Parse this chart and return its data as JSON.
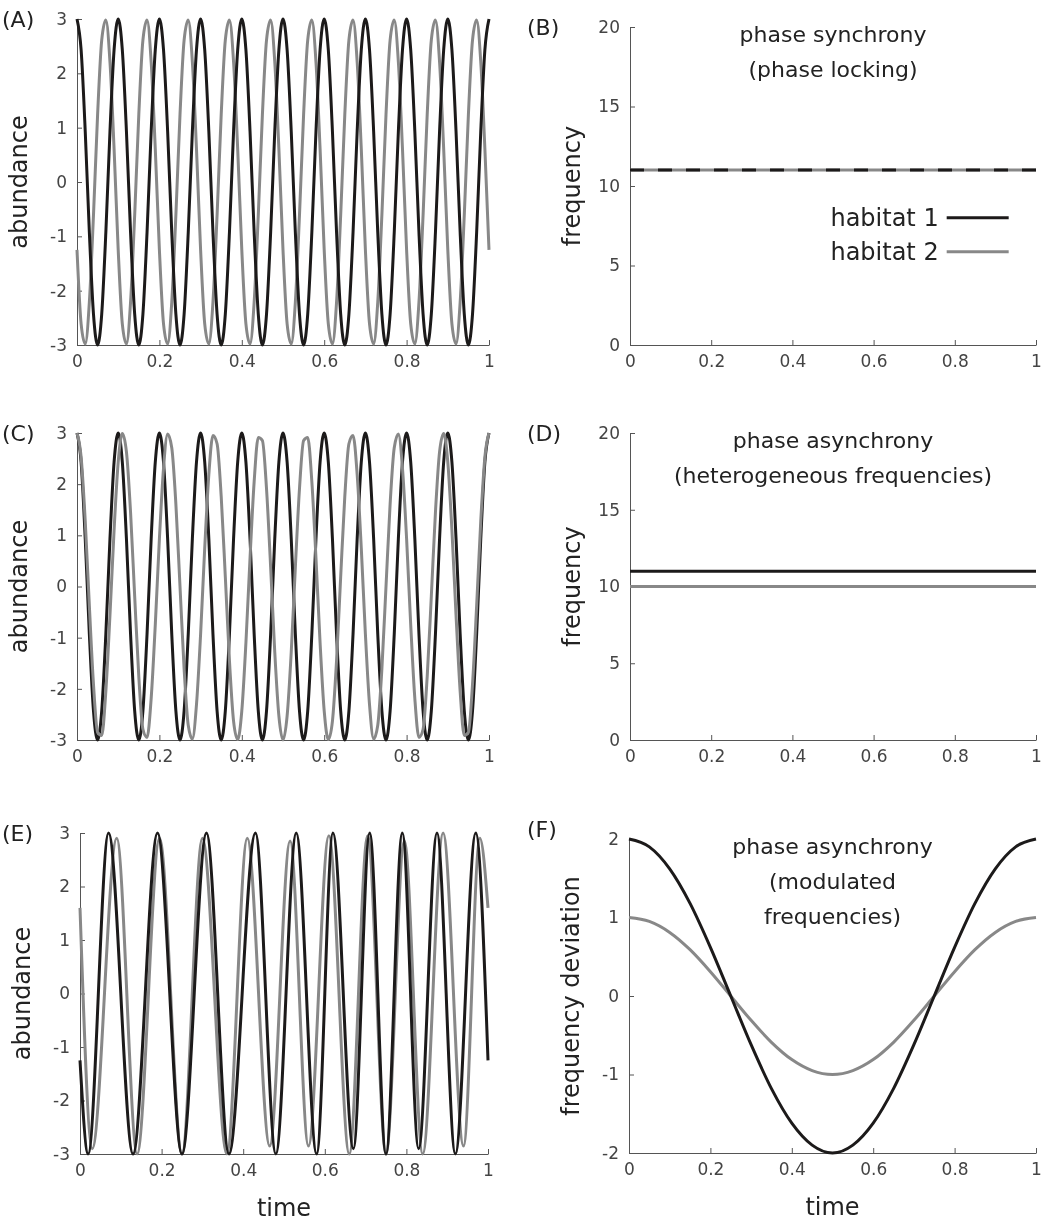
{
  "chart_data": [
    {
      "type": "line",
      "ylabel": "abundance",
      "annotations": [
        "(A)"
      ],
      "xlim": [
        0,
        1
      ],
      "xticks": [
        0,
        0.2,
        0.4,
        0.6,
        0.8,
        1
      ],
      "ylim": [
        -3,
        3
      ],
      "yticks": [
        -3,
        -2,
        -1,
        0,
        1,
        2,
        3
      ],
      "x": [
        0,
        0.01,
        0.02,
        0.03,
        0.04,
        0.05,
        0.06,
        0.07,
        0.08,
        0.09,
        0.1,
        0.11,
        0.12,
        0.13,
        0.14,
        0.15,
        0.16,
        0.17,
        0.18,
        0.19,
        0.2,
        0.21,
        0.22,
        0.23,
        0.24,
        0.25,
        0.26,
        0.27,
        0.28,
        0.29,
        0.3,
        0.31,
        0.32,
        0.33,
        0.34,
        0.35,
        0.36,
        0.37,
        0.38,
        0.39,
        0.4,
        0.41,
        0.42,
        0.43,
        0.44,
        0.45,
        0.46,
        0.47,
        0.48,
        0.49,
        0.5,
        0.51,
        0.52,
        0.53,
        0.54,
        0.55,
        0.56,
        0.57,
        0.58,
        0.59,
        0.6,
        0.61,
        0.62,
        0.63,
        0.64,
        0.65,
        0.66,
        0.67,
        0.68,
        0.69,
        0.7,
        0.71,
        0.72,
        0.73,
        0.74,
        0.75,
        0.76,
        0.77,
        0.78,
        0.79,
        0.8,
        0.81,
        0.82,
        0.83,
        0.84,
        0.85,
        0.86,
        0.87,
        0.88,
        0.89,
        0.9,
        0.91,
        0.92,
        0.93,
        0.94,
        0.95,
        0.96,
        0.97,
        0.98,
        0.99,
        1
      ],
      "series": [
        {
          "color": "#888888",
          "values": [
            -1.25,
            -2.61,
            -2.98,
            -2.21,
            -0.61,
            1.24,
            2.61,
            2.98,
            2.21,
            0.61,
            -1.25,
            -2.61,
            -2.98,
            -2.21,
            -0.61,
            1.24,
            2.61,
            2.98,
            2.21,
            0.61,
            -1.25,
            -2.61,
            -2.98,
            -2.21,
            -0.61,
            1.24,
            2.61,
            2.98,
            2.21,
            0.61,
            -1.25,
            -2.61,
            -2.98,
            -2.21,
            -0.61,
            1.24,
            2.61,
            2.98,
            2.21,
            0.61,
            -1.25,
            -2.61,
            -2.98,
            -2.21,
            -0.61,
            1.24,
            2.61,
            2.98,
            2.21,
            0.61,
            -1.25,
            -2.61,
            -2.98,
            -2.21,
            -0.61,
            1.24,
            2.61,
            2.98,
            2.21,
            0.61,
            -1.25,
            -2.61,
            -2.98,
            -2.21,
            -0.61,
            1.24,
            2.61,
            2.98,
            2.21,
            0.61,
            -1.25,
            -2.61,
            -2.98,
            -2.21,
            -0.61,
            1.24,
            2.61,
            2.98,
            2.21,
            0.61,
            -1.25,
            -2.61,
            -2.98,
            -2.21,
            -0.61,
            1.24,
            2.61,
            2.98,
            2.21,
            0.61,
            -1.25,
            -2.61,
            -2.98,
            -2.21,
            -0.61,
            1.24,
            2.61,
            2.98,
            2.21,
            0.61,
            -1.25
          ]
        },
        {
          "color": "#1c1a1a",
          "values": [
            3,
            2.43,
            0.93,
            -0.93,
            -2.43,
            -3,
            -2.43,
            -0.93,
            0.93,
            2.43,
            3,
            2.43,
            0.93,
            -0.93,
            -2.43,
            -3,
            -2.43,
            -0.93,
            0.93,
            2.43,
            3,
            2.43,
            0.93,
            -0.93,
            -2.43,
            -3,
            -2.43,
            -0.93,
            0.93,
            2.43,
            3,
            2.43,
            0.93,
            -0.93,
            -2.43,
            -3,
            -2.43,
            -0.93,
            0.93,
            2.43,
            3,
            2.43,
            0.93,
            -0.93,
            -2.43,
            -3,
            -2.43,
            -0.93,
            0.93,
            2.43,
            3,
            2.43,
            0.93,
            -0.93,
            -2.43,
            -3,
            -2.43,
            -0.93,
            0.93,
            2.43,
            3,
            2.43,
            0.93,
            -0.93,
            -2.43,
            -3,
            -2.43,
            -0.93,
            0.93,
            2.43,
            3,
            2.43,
            0.93,
            -0.93,
            -2.43,
            -3,
            -2.43,
            -0.93,
            0.93,
            2.43,
            3,
            2.43,
            0.93,
            -0.93,
            -2.43,
            -3,
            -2.43,
            -0.93,
            0.93,
            2.43,
            3,
            2.43,
            0.93,
            -0.93,
            -2.43,
            -3,
            -2.43,
            -0.93,
            0.93,
            2.43,
            3
          ]
        }
      ]
    },
    {
      "type": "line",
      "title": "phase synchrony",
      "subtitle": "(phase locking)",
      "ylabel": "frequency",
      "annotations": [
        "(B)"
      ],
      "legend": "right",
      "xlim": [
        0,
        1
      ],
      "xticks": [
        0,
        0.2,
        0.4,
        0.6,
        0.8,
        1
      ],
      "ylim": [
        0,
        20
      ],
      "yticks": [
        0,
        5,
        10,
        15,
        20
      ],
      "x": [
        0,
        1
      ],
      "series": [
        {
          "name": "habitat 1",
          "color": "#1c1a1a",
          "line_style": "dashed",
          "values": [
            11,
            11
          ]
        },
        {
          "name": "habitat 2",
          "color": "#888888",
          "values": [
            11,
            11
          ]
        }
      ]
    },
    {
      "type": "line",
      "ylabel": "abundance",
      "annotations": [
        "(C)"
      ],
      "xlim": [
        0,
        1
      ],
      "xticks": [
        0,
        0.2,
        0.4,
        0.6,
        0.8,
        1
      ],
      "ylim": [
        -3,
        3
      ],
      "yticks": [
        -3,
        -2,
        -1,
        0,
        1,
        2,
        3
      ],
      "x": [
        0,
        0.01,
        0.02,
        0.03,
        0.04,
        0.05,
        0.06,
        0.07,
        0.08,
        0.09,
        0.1,
        0.11,
        0.12,
        0.13,
        0.14,
        0.15,
        0.16,
        0.17,
        0.18,
        0.19,
        0.2,
        0.21,
        0.22,
        0.23,
        0.24,
        0.25,
        0.26,
        0.27,
        0.28,
        0.29,
        0.3,
        0.31,
        0.32,
        0.33,
        0.34,
        0.35,
        0.36,
        0.37,
        0.38,
        0.39,
        0.4,
        0.41,
        0.42,
        0.43,
        0.44,
        0.45,
        0.46,
        0.47,
        0.48,
        0.49,
        0.5,
        0.51,
        0.52,
        0.53,
        0.54,
        0.55,
        0.56,
        0.57,
        0.58,
        0.59,
        0.6,
        0.61,
        0.62,
        0.63,
        0.64,
        0.65,
        0.66,
        0.67,
        0.68,
        0.69,
        0.7,
        0.71,
        0.72,
        0.73,
        0.74,
        0.75,
        0.76,
        0.77,
        0.78,
        0.79,
        0.8,
        0.81,
        0.82,
        0.83,
        0.84,
        0.85,
        0.86,
        0.87,
        0.88,
        0.89,
        0.9,
        0.91,
        0.92,
        0.93,
        0.94,
        0.95,
        0.96,
        0.97,
        0.98,
        0.99,
        1
      ],
      "series": [
        {
          "color": "#1c1a1a",
          "values": [
            3,
            2.43,
            0.93,
            -0.93,
            -2.43,
            -3,
            -2.43,
            -0.93,
            0.93,
            2.43,
            3,
            2.43,
            0.93,
            -0.93,
            -2.43,
            -3,
            -2.43,
            -0.93,
            0.93,
            2.43,
            3,
            2.43,
            0.93,
            -0.93,
            -2.43,
            -3,
            -2.43,
            -0.93,
            0.93,
            2.43,
            3,
            2.43,
            0.93,
            -0.93,
            -2.43,
            -3,
            -2.43,
            -0.93,
            0.93,
            2.43,
            3,
            2.43,
            0.93,
            -0.93,
            -2.43,
            -3,
            -2.43,
            -0.93,
            0.93,
            2.43,
            3,
            2.43,
            0.93,
            -0.93,
            -2.43,
            -3,
            -2.43,
            -0.93,
            0.93,
            2.43,
            3,
            2.43,
            0.93,
            -0.93,
            -2.43,
            -3,
            -2.43,
            -0.93,
            0.93,
            2.43,
            3,
            2.43,
            0.93,
            -0.93,
            -2.43,
            -3,
            -2.43,
            -0.93,
            0.93,
            2.43,
            3,
            2.43,
            0.93,
            -0.93,
            -2.43,
            -3,
            -2.43,
            -0.93,
            0.93,
            2.43,
            3,
            2.43,
            0.93,
            -0.93,
            -2.43,
            -3,
            -2.43,
            -0.93,
            0.93,
            2.43,
            3
          ]
        },
        {
          "color": "#888888",
          "values": [
            3,
            2.53,
            1.28,
            -0.38,
            -1.91,
            -2.85,
            -2.91,
            -2.05,
            -0.56,
            1.1,
            2.43,
            2.99,
            2.63,
            1.45,
            -0.19,
            -1.76,
            -2.79,
            -2.95,
            -2.19,
            -0.75,
            0.93,
            2.31,
            2.98,
            2.71,
            1.61,
            0,
            -1.61,
            -2.71,
            -2.98,
            -2.31,
            -0.93,
            0.75,
            2.19,
            2.95,
            2.79,
            1.76,
            0.19,
            -1.45,
            -2.63,
            -2.99,
            -2.43,
            -1.1,
            0.56,
            2.05,
            2.91,
            2.85,
            1.91,
            0.38,
            -1.28,
            -2.53,
            -3,
            -2.53,
            -1.28,
            0.38,
            1.91,
            2.85,
            2.91,
            2.05,
            0.56,
            -1.1,
            -2.43,
            -2.99,
            -2.63,
            -1.45,
            0.19,
            1.76,
            2.79,
            2.95,
            2.19,
            0.75,
            -0.93,
            -2.31,
            -2.98,
            -2.71,
            -1.61,
            0,
            1.61,
            2.71,
            2.98,
            2.31,
            0.93,
            -0.75,
            -2.19,
            -2.95,
            -2.79,
            -1.76,
            -0.19,
            1.45,
            2.63,
            2.99,
            2.43,
            1.1,
            -0.56,
            -2.05,
            -2.91,
            -2.85,
            -1.91,
            -0.38,
            1.28,
            2.53,
            3
          ]
        }
      ]
    },
    {
      "type": "line",
      "title": "phase asynchrony",
      "subtitle": "(heterogeneous frequencies)",
      "ylabel": "frequency",
      "annotations": [
        "(D)"
      ],
      "xlim": [
        0,
        1
      ],
      "xticks": [
        0,
        0.2,
        0.4,
        0.6,
        0.8,
        1
      ],
      "ylim": [
        0,
        20
      ],
      "yticks": [
        0,
        5,
        10,
        15,
        20
      ],
      "x": [
        0,
        1
      ],
      "series": [
        {
          "color": "#1c1a1a",
          "values": [
            11,
            11
          ]
        },
        {
          "color": "#888888",
          "values": [
            10,
            10
          ]
        }
      ]
    },
    {
      "type": "line",
      "xlabel": "time",
      "ylabel": "abundance",
      "annotations": [
        "(E)"
      ],
      "xlim": [
        0,
        1
      ],
      "xticks": [
        0,
        0.2,
        0.4,
        0.6,
        0.8,
        1
      ],
      "ylim": [
        -3,
        3
      ],
      "yticks": [
        -3,
        -2,
        -1,
        0,
        1,
        2,
        3
      ],
      "series": [
        {
          "color": "#888888",
          "x": [
            0,
            0.03,
            0.09,
            0.14,
            0.195,
            0.25,
            0.3,
            0.36,
            0.41,
            0.465,
            0.515,
            0.56,
            0.61,
            0.66,
            0.705,
            0.75,
            0.795,
            0.84,
            0.89,
            0.94,
            0.98,
            1
          ],
          "values": [
            1.6,
            -2.9,
            2.9,
            -3,
            2.9,
            -3,
            2.9,
            -3,
            2.9,
            -2.85,
            2.85,
            -2.85,
            2.95,
            -3,
            2.95,
            -3,
            2.85,
            -3,
            3,
            -2.85,
            2.9,
            1.6
          ]
        },
        {
          "color": "#1c1a1a",
          "x": [
            0,
            0.02,
            0.07,
            0.13,
            0.19,
            0.25,
            0.31,
            0.365,
            0.43,
            0.48,
            0.53,
            0.58,
            0.62,
            0.67,
            0.71,
            0.75,
            0.79,
            0.83,
            0.875,
            0.92,
            0.97,
            1
          ],
          "values": [
            -1.25,
            -3,
            3,
            -3,
            3,
            -3,
            3,
            -3,
            3,
            -3,
            3,
            -3,
            3,
            -2.9,
            3,
            -3,
            3,
            -2.9,
            3,
            -3,
            3,
            -1.25
          ]
        }
      ]
    },
    {
      "type": "line",
      "title": "phase asynchrony",
      "subtitle": "(modulated frequencies)",
      "xlabel": "time",
      "ylabel": "frequency deviation",
      "annotations": [
        "(F)"
      ],
      "xlim": [
        0,
        1
      ],
      "xticks": [
        0,
        0.2,
        0.4,
        0.6,
        0.8,
        1
      ],
      "ylim": [
        -2,
        2
      ],
      "yticks": [
        -2,
        -1,
        0,
        1,
        2
      ],
      "x": [
        0,
        0.05,
        0.1,
        0.15,
        0.2,
        0.25,
        0.3,
        0.35,
        0.4,
        0.45,
        0.5,
        0.55,
        0.6,
        0.65,
        0.7,
        0.75,
        0.8,
        0.85,
        0.9,
        0.95,
        1
      ],
      "series": [
        {
          "color": "#888888",
          "values": [
            1,
            0.95,
            0.81,
            0.59,
            0.31,
            0,
            -0.31,
            -0.59,
            -0.81,
            -0.95,
            -1,
            -0.95,
            -0.81,
            -0.59,
            -0.31,
            0,
            0.31,
            0.59,
            0.81,
            0.95,
            1
          ]
        },
        {
          "color": "#1c1a1a",
          "values": [
            2,
            1.9,
            1.62,
            1.18,
            0.62,
            0,
            -0.62,
            -1.18,
            -1.62,
            -1.9,
            -2,
            -1.9,
            -1.62,
            -1.18,
            -0.62,
            0,
            0.62,
            1.18,
            1.62,
            1.9,
            2
          ]
        }
      ]
    }
  ]
}
